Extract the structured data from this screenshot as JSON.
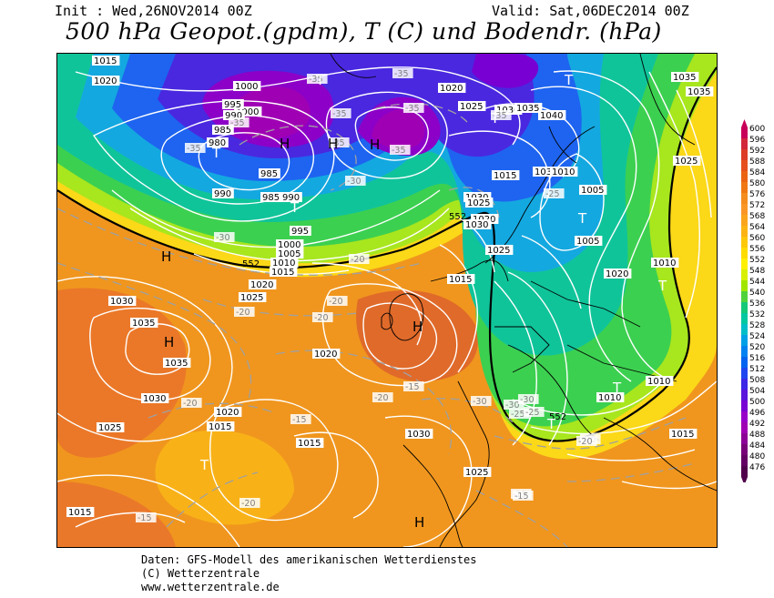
{
  "header": {
    "init": "Init : Wed,26NOV2014 00Z",
    "valid": "Valid: Sat,06DEC2014 00Z",
    "title": "500 hPa Geopot.(gpdm), T (C) und Bodendr. (hPa)"
  },
  "footer": {
    "line1": "Daten: GFS-Modell des amerikanischen Wetterdienstes",
    "line2": "(C) Wetterzentrale",
    "line3": "www.wetterzentrale.de"
  },
  "colorscale": {
    "values": [
      "600",
      "596",
      "592",
      "588",
      "584",
      "580",
      "576",
      "572",
      "568",
      "564",
      "560",
      "556",
      "552",
      "548",
      "544",
      "540",
      "536",
      "532",
      "528",
      "524",
      "520",
      "516",
      "512",
      "508",
      "504",
      "500",
      "496",
      "492",
      "488",
      "484",
      "480",
      "476"
    ],
    "colors": [
      "#c8005a",
      "#d2283c",
      "#dc3c28",
      "#e6501e",
      "#eb6414",
      "#f07814",
      "#f58c1e",
      "#fa9628",
      "#fba51e",
      "#fcb414",
      "#fdc80a",
      "#ffdc00",
      "#fff000",
      "#d8f000",
      "#a0e600",
      "#50d23c",
      "#14c878",
      "#00c8a0",
      "#00bec8",
      "#00a0e6",
      "#0082f0",
      "#0064f0",
      "#1e46f0",
      "#3c28e6",
      "#5a14dc",
      "#7800d2",
      "#9600c8",
      "#a000b4",
      "#8c0096",
      "#780078",
      "#640064",
      "#50004b"
    ]
  },
  "map_labels": {
    "pressure": [
      "1015",
      "1020",
      "1000",
      "1000",
      "995",
      "990",
      "985",
      "980",
      "985",
      "990",
      "985",
      "990",
      "995",
      "1000",
      "1005",
      "1010",
      "1015",
      "1020",
      "1025",
      "1030",
      "1035",
      "1035",
      "1030",
      "1025",
      "1020",
      "1015",
      "1020",
      "1025",
      "1030",
      "1035",
      "1040",
      "1035",
      "1030",
      "1025",
      "1015",
      "1005",
      "1005",
      "1010",
      "1015",
      "1020",
      "1025",
      "1030",
      "1020",
      "1010",
      "1010",
      "1010",
      "1015",
      "1035",
      "1035",
      "1025",
      "1020",
      "1015",
      "1030",
      "1025",
      "1015"
    ],
    "temperature": [
      "-35",
      "-35",
      "-35",
      "-35",
      "-35",
      "-35",
      "-35",
      "-35",
      "-30",
      "-30",
      "-30",
      "-25",
      "-25",
      "-20",
      "-20",
      "-20",
      "-20",
      "-20",
      "-20",
      "-20",
      "-15",
      "-15",
      "-15",
      "-15",
      "-20",
      "-30",
      "-30",
      "-35",
      "-25",
      "-20",
      "-15"
    ],
    "height": [
      "552",
      "552",
      "552"
    ],
    "highs": [
      "H",
      "H",
      "H",
      "H",
      "H",
      "H",
      "H"
    ],
    "lows": [
      "T",
      "T",
      "T",
      "T",
      "T",
      "T",
      "T",
      "T",
      "T",
      "T"
    ]
  }
}
